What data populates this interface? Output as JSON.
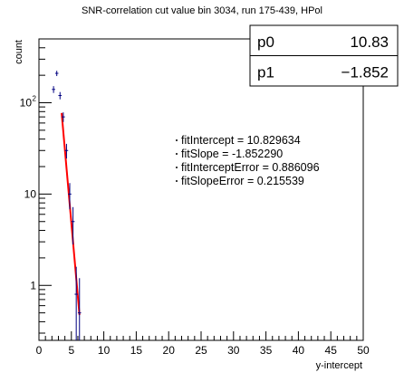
{
  "chart_data": {
    "type": "scatter",
    "title": "SNR-correlation cut value bin 3034, run 175-439, HPol",
    "xlabel": "y-intercept",
    "ylabel": "count",
    "xlim": [
      0,
      50
    ],
    "ylim": [
      0.25,
      500
    ],
    "yscale": "log",
    "x_ticks": [
      0,
      5,
      10,
      15,
      20,
      25,
      30,
      35,
      40,
      45,
      50
    ],
    "y_ticks": [
      {
        "value": 1,
        "base": "1",
        "exp": ""
      },
      {
        "value": 10,
        "base": "10",
        "exp": ""
      },
      {
        "value": 100,
        "base": "10",
        "exp": "2"
      }
    ],
    "grid": false,
    "series": [
      {
        "points": [
          {
            "x": 2.25,
            "y": 140,
            "yerr_low": 12,
            "yerr_high": 12
          },
          {
            "x": 2.75,
            "y": 210,
            "yerr_low": 14,
            "yerr_high": 14
          },
          {
            "x": 3.25,
            "y": 120,
            "yerr_low": 11,
            "yerr_high": 11
          },
          {
            "x": 3.75,
            "y": 70,
            "yerr_low": 8.4,
            "yerr_high": 8.4
          },
          {
            "x": 4.25,
            "y": 30,
            "yerr_low": 5.5,
            "yerr_high": 5.5
          },
          {
            "x": 4.75,
            "y": 10,
            "yerr_low": 3.2,
            "yerr_high": 3.2
          },
          {
            "x": 5.25,
            "y": 5,
            "yerr_low": 2.2,
            "yerr_high": 2.2
          },
          {
            "x": 5.75,
            "y": 0.8,
            "yerr_low": 0.55,
            "yerr_high": 0.8
          },
          {
            "x": 6.25,
            "y": 0.5,
            "yerr_low": 0.25,
            "yerr_high": 0.7
          }
        ]
      }
    ],
    "fit": {
      "color": "#ff0000",
      "intercept": 10.829634,
      "slope": -1.85229,
      "x_range": [
        3.5,
        6.25
      ]
    },
    "stats_box": {
      "rows": [
        {
          "label": "p0",
          "value": "10.83"
        },
        {
          "label": "p1",
          "value": "−1.852"
        }
      ]
    },
    "annotations": [
      "fitIntercept = 10.829634",
      "fitSlope = -1.852290",
      "fitInterceptError = 0.886096",
      "fitSlopeError = 0.215539"
    ]
  }
}
